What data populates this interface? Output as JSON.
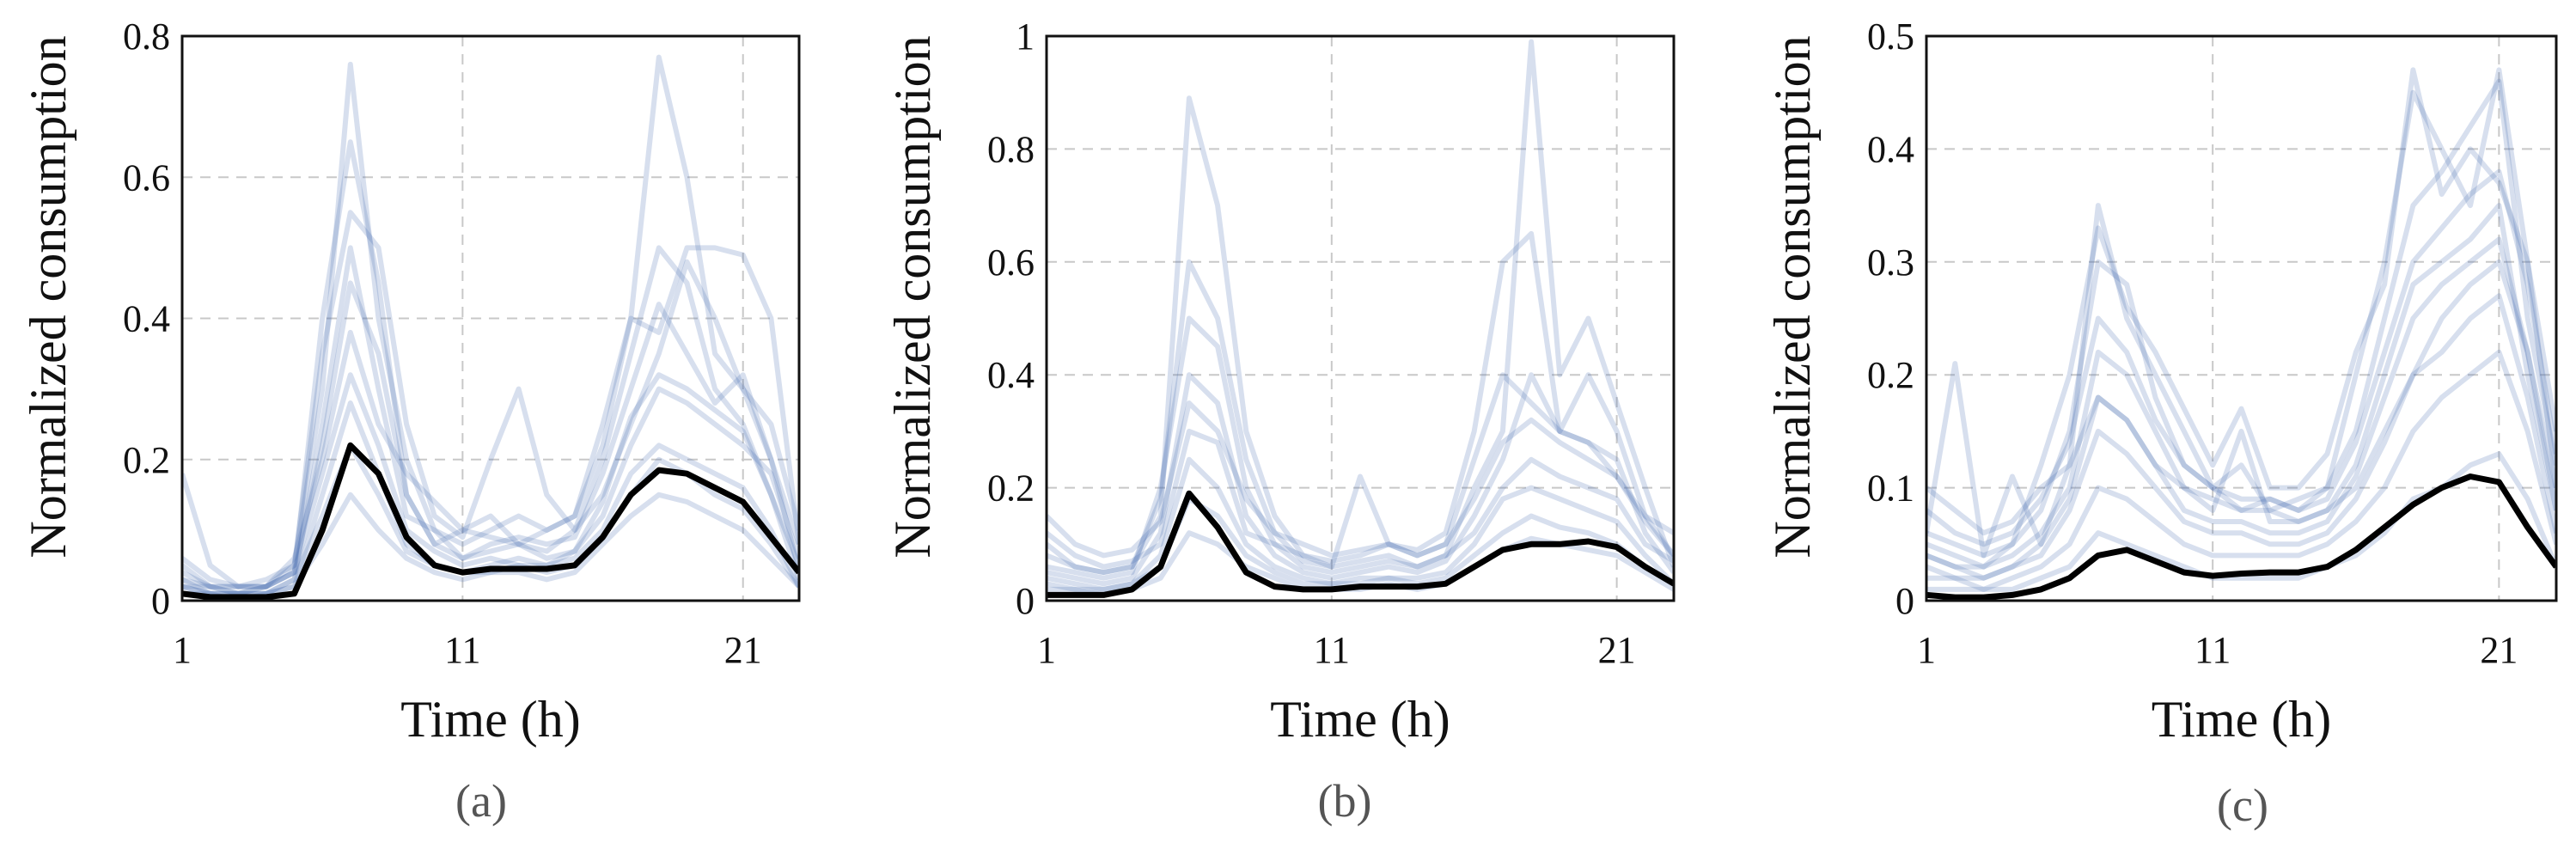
{
  "chart_data": [
    {
      "type": "line",
      "caption": "(a)",
      "xlabel": "Time (h)",
      "ylabel": "Normalized consumption",
      "xlim": [
        1,
        23
      ],
      "ylim": [
        0,
        0.8
      ],
      "xticks": [
        "1",
        "11",
        "21"
      ],
      "xtick_values": [
        1,
        11,
        21
      ],
      "yticks": [
        "0",
        "0.2",
        "0.4",
        "0.6",
        "0.8"
      ],
      "ytick_values": [
        0,
        0.2,
        0.4,
        0.6,
        0.8
      ],
      "grid": true,
      "x": [
        1,
        2,
        3,
        4,
        5,
        6,
        7,
        8,
        9,
        10,
        11,
        12,
        13,
        14,
        15,
        16,
        17,
        18,
        19,
        20,
        21,
        22,
        23
      ],
      "series_color": "#4a6db2",
      "mean_color": "#000000",
      "series": [
        {
          "values": [
            0.05,
            0.02,
            0.02,
            0.03,
            0.05,
            0.3,
            0.76,
            0.4,
            0.2,
            0.1,
            0.08,
            0.1,
            0.12,
            0.1,
            0.12,
            0.25,
            0.4,
            0.77,
            0.6,
            0.35,
            0.3,
            0.2,
            0.08
          ]
        },
        {
          "values": [
            0.03,
            0.02,
            0.01,
            0.02,
            0.04,
            0.4,
            0.65,
            0.45,
            0.15,
            0.08,
            0.1,
            0.12,
            0.08,
            0.07,
            0.1,
            0.2,
            0.35,
            0.5,
            0.45,
            0.3,
            0.25,
            0.15,
            0.05
          ]
        },
        {
          "values": [
            0.02,
            0.01,
            0.01,
            0.01,
            0.03,
            0.25,
            0.5,
            0.3,
            0.12,
            0.1,
            0.06,
            0.08,
            0.09,
            0.08,
            0.09,
            0.18,
            0.3,
            0.42,
            0.35,
            0.28,
            0.32,
            0.2,
            0.04
          ]
        },
        {
          "values": [
            0.06,
            0.03,
            0.02,
            0.02,
            0.06,
            0.2,
            0.38,
            0.25,
            0.18,
            0.14,
            0.1,
            0.09,
            0.08,
            0.06,
            0.07,
            0.12,
            0.22,
            0.3,
            0.28,
            0.25,
            0.22,
            0.18,
            0.06
          ]
        },
        {
          "values": [
            0.01,
            0.01,
            0.0,
            0.01,
            0.02,
            0.15,
            0.28,
            0.18,
            0.08,
            0.05,
            0.04,
            0.05,
            0.06,
            0.05,
            0.06,
            0.1,
            0.18,
            0.22,
            0.2,
            0.18,
            0.16,
            0.1,
            0.02
          ]
        },
        {
          "values": [
            0.04,
            0.02,
            0.02,
            0.02,
            0.05,
            0.35,
            0.55,
            0.5,
            0.25,
            0.12,
            0.09,
            0.2,
            0.3,
            0.15,
            0.1,
            0.15,
            0.25,
            0.35,
            0.48,
            0.4,
            0.3,
            0.25,
            0.1
          ]
        },
        {
          "values": [
            0.02,
            0.02,
            0.01,
            0.02,
            0.04,
            0.18,
            0.32,
            0.22,
            0.1,
            0.07,
            0.05,
            0.06,
            0.05,
            0.05,
            0.07,
            0.14,
            0.26,
            0.32,
            0.3,
            0.27,
            0.24,
            0.15,
            0.03
          ]
        },
        {
          "values": [
            0.03,
            0.01,
            0.01,
            0.01,
            0.03,
            0.12,
            0.22,
            0.15,
            0.07,
            0.05,
            0.04,
            0.04,
            0.05,
            0.04,
            0.05,
            0.09,
            0.15,
            0.2,
            0.18,
            0.15,
            0.13,
            0.08,
            0.02
          ]
        },
        {
          "values": [
            0.18,
            0.05,
            0.02,
            0.02,
            0.04,
            0.22,
            0.45,
            0.35,
            0.15,
            0.08,
            0.06,
            0.07,
            0.08,
            0.1,
            0.12,
            0.22,
            0.4,
            0.38,
            0.5,
            0.5,
            0.49,
            0.4,
            0.08
          ]
        },
        {
          "values": [
            0.02,
            0.01,
            0.01,
            0.01,
            0.02,
            0.08,
            0.15,
            0.1,
            0.06,
            0.04,
            0.03,
            0.04,
            0.04,
            0.03,
            0.04,
            0.08,
            0.12,
            0.15,
            0.14,
            0.12,
            0.1,
            0.06,
            0.02
          ]
        }
      ],
      "mean": [
        0.01,
        0.005,
        0.005,
        0.005,
        0.01,
        0.1,
        0.22,
        0.18,
        0.09,
        0.05,
        0.04,
        0.045,
        0.045,
        0.045,
        0.05,
        0.09,
        0.15,
        0.185,
        0.18,
        0.16,
        0.14,
        0.09,
        0.04
      ]
    },
    {
      "type": "line",
      "caption": "(b)",
      "xlabel": "Time (h)",
      "ylabel": "Normalized consumption",
      "xlim": [
        1,
        23
      ],
      "ylim": [
        0,
        1
      ],
      "xticks": [
        "1",
        "11",
        "21"
      ],
      "xtick_values": [
        1,
        11,
        21
      ],
      "yticks": [
        "0",
        "0.2",
        "0.4",
        "0.6",
        "0.8",
        "1"
      ],
      "ytick_values": [
        0,
        0.2,
        0.4,
        0.6,
        0.8,
        1
      ],
      "grid": true,
      "x": [
        1,
        2,
        3,
        4,
        5,
        6,
        7,
        8,
        9,
        10,
        11,
        12,
        13,
        14,
        15,
        16,
        17,
        18,
        19,
        20,
        21,
        22,
        23
      ],
      "series_color": "#4a6db2",
      "mean_color": "#000000",
      "series": [
        {
          "values": [
            0.1,
            0.06,
            0.05,
            0.06,
            0.15,
            0.89,
            0.7,
            0.3,
            0.15,
            0.08,
            0.07,
            0.08,
            0.1,
            0.09,
            0.12,
            0.3,
            0.6,
            0.65,
            0.3,
            0.4,
            0.3,
            0.15,
            0.08
          ]
        },
        {
          "values": [
            0.06,
            0.05,
            0.04,
            0.05,
            0.2,
            0.5,
            0.45,
            0.2,
            0.1,
            0.06,
            0.05,
            0.06,
            0.07,
            0.06,
            0.08,
            0.2,
            0.3,
            0.99,
            0.4,
            0.5,
            0.35,
            0.2,
            0.06
          ]
        },
        {
          "values": [
            0.05,
            0.04,
            0.03,
            0.04,
            0.12,
            0.4,
            0.35,
            0.15,
            0.08,
            0.05,
            0.04,
            0.05,
            0.06,
            0.05,
            0.07,
            0.15,
            0.25,
            0.4,
            0.3,
            0.28,
            0.25,
            0.12,
            0.05
          ]
        },
        {
          "values": [
            0.12,
            0.08,
            0.06,
            0.07,
            0.1,
            0.3,
            0.28,
            0.12,
            0.1,
            0.08,
            0.06,
            0.07,
            0.08,
            0.06,
            0.08,
            0.12,
            0.2,
            0.25,
            0.22,
            0.2,
            0.18,
            0.1,
            0.07
          ]
        },
        {
          "values": [
            0.03,
            0.02,
            0.02,
            0.03,
            0.08,
            0.25,
            0.2,
            0.1,
            0.06,
            0.04,
            0.03,
            0.04,
            0.04,
            0.04,
            0.05,
            0.1,
            0.18,
            0.2,
            0.18,
            0.16,
            0.14,
            0.08,
            0.03
          ]
        },
        {
          "values": [
            0.08,
            0.06,
            0.05,
            0.06,
            0.18,
            0.6,
            0.5,
            0.25,
            0.12,
            0.07,
            0.06,
            0.22,
            0.1,
            0.08,
            0.1,
            0.25,
            0.4,
            0.35,
            0.3,
            0.28,
            0.22,
            0.14,
            0.08
          ]
        },
        {
          "values": [
            0.04,
            0.03,
            0.02,
            0.03,
            0.06,
            0.18,
            0.15,
            0.08,
            0.05,
            0.03,
            0.03,
            0.03,
            0.04,
            0.03,
            0.04,
            0.08,
            0.12,
            0.15,
            0.13,
            0.12,
            0.1,
            0.06,
            0.03
          ]
        },
        {
          "values": [
            0.15,
            0.1,
            0.08,
            0.09,
            0.14,
            0.35,
            0.3,
            0.18,
            0.12,
            0.1,
            0.08,
            0.09,
            0.1,
            0.08,
            0.1,
            0.18,
            0.28,
            0.32,
            0.28,
            0.25,
            0.22,
            0.15,
            0.12
          ]
        },
        {
          "values": [
            0.02,
            0.02,
            0.01,
            0.02,
            0.04,
            0.12,
            0.1,
            0.06,
            0.04,
            0.02,
            0.02,
            0.02,
            0.03,
            0.02,
            0.03,
            0.06,
            0.09,
            0.11,
            0.1,
            0.09,
            0.08,
            0.05,
            0.02
          ]
        }
      ],
      "mean": [
        0.01,
        0.01,
        0.01,
        0.02,
        0.06,
        0.19,
        0.13,
        0.05,
        0.025,
        0.02,
        0.02,
        0.025,
        0.025,
        0.025,
        0.03,
        0.06,
        0.09,
        0.1,
        0.1,
        0.105,
        0.095,
        0.06,
        0.03
      ]
    },
    {
      "type": "line",
      "caption": "(c)",
      "xlabel": "Time (h)",
      "ylabel": "Normalized consumption",
      "xlim": [
        1,
        23
      ],
      "ylim": [
        0,
        0.5
      ],
      "xticks": [
        "1",
        "11",
        "21"
      ],
      "xtick_values": [
        1,
        11,
        21
      ],
      "yticks": [
        "0",
        "0.1",
        "0.2",
        "0.3",
        "0.4",
        "0.5"
      ],
      "ytick_values": [
        0,
        0.1,
        0.2,
        0.3,
        0.4,
        0.5
      ],
      "grid": true,
      "x": [
        1,
        2,
        3,
        4,
        5,
        6,
        7,
        8,
        9,
        10,
        11,
        12,
        13,
        14,
        15,
        16,
        17,
        18,
        19,
        20,
        21,
        22,
        23
      ],
      "series_color": "#4a6db2",
      "mean_color": "#000000",
      "series": [
        {
          "values": [
            0.06,
            0.21,
            0.04,
            0.11,
            0.05,
            0.12,
            0.35,
            0.25,
            0.2,
            0.15,
            0.1,
            0.12,
            0.08,
            0.09,
            0.1,
            0.2,
            0.3,
            0.45,
            0.4,
            0.35,
            0.47,
            0.3,
            0.15
          ]
        },
        {
          "values": [
            0.05,
            0.04,
            0.03,
            0.05,
            0.08,
            0.15,
            0.3,
            0.28,
            0.18,
            0.12,
            0.1,
            0.08,
            0.09,
            0.08,
            0.1,
            0.15,
            0.25,
            0.35,
            0.38,
            0.42,
            0.46,
            0.25,
            0.12
          ]
        },
        {
          "values": [
            0.04,
            0.03,
            0.03,
            0.04,
            0.06,
            0.1,
            0.22,
            0.2,
            0.15,
            0.1,
            0.08,
            0.15,
            0.07,
            0.07,
            0.08,
            0.12,
            0.2,
            0.28,
            0.3,
            0.32,
            0.35,
            0.2,
            0.08
          ]
        },
        {
          "values": [
            0.1,
            0.08,
            0.06,
            0.07,
            0.1,
            0.12,
            0.18,
            0.16,
            0.12,
            0.1,
            0.09,
            0.08,
            0.08,
            0.07,
            0.08,
            0.1,
            0.15,
            0.2,
            0.25,
            0.28,
            0.3,
            0.22,
            0.1
          ]
        },
        {
          "values": [
            0.02,
            0.02,
            0.01,
            0.02,
            0.03,
            0.05,
            0.1,
            0.09,
            0.07,
            0.05,
            0.04,
            0.04,
            0.04,
            0.04,
            0.05,
            0.07,
            0.1,
            0.15,
            0.18,
            0.2,
            0.22,
            0.15,
            0.05
          ]
        },
        {
          "values": [
            0.06,
            0.05,
            0.04,
            0.05,
            0.12,
            0.2,
            0.33,
            0.26,
            0.22,
            0.17,
            0.12,
            0.17,
            0.1,
            0.1,
            0.13,
            0.22,
            0.28,
            0.47,
            0.36,
            0.4,
            0.37,
            0.3,
            0.1
          ]
        },
        {
          "values": [
            0.03,
            0.02,
            0.02,
            0.03,
            0.04,
            0.08,
            0.15,
            0.13,
            0.1,
            0.07,
            0.06,
            0.06,
            0.05,
            0.05,
            0.06,
            0.09,
            0.14,
            0.2,
            0.22,
            0.25,
            0.27,
            0.18,
            0.06
          ]
        },
        {
          "values": [
            0.01,
            0.01,
            0.01,
            0.01,
            0.02,
            0.03,
            0.06,
            0.05,
            0.04,
            0.03,
            0.02,
            0.02,
            0.02,
            0.02,
            0.03,
            0.04,
            0.06,
            0.09,
            0.1,
            0.12,
            0.13,
            0.09,
            0.03
          ]
        },
        {
          "values": [
            0.08,
            0.06,
            0.05,
            0.06,
            0.09,
            0.14,
            0.25,
            0.22,
            0.16,
            0.12,
            0.1,
            0.09,
            0.09,
            0.08,
            0.09,
            0.14,
            0.22,
            0.3,
            0.33,
            0.36,
            0.38,
            0.28,
            0.13
          ]
        },
        {
          "values": [
            0.04,
            0.03,
            0.02,
            0.03,
            0.05,
            0.09,
            0.18,
            0.16,
            0.12,
            0.08,
            0.07,
            0.07,
            0.06,
            0.06,
            0.07,
            0.11,
            0.18,
            0.25,
            0.28,
            0.3,
            0.32,
            0.22,
            0.08
          ]
        }
      ],
      "mean": [
        0.005,
        0.003,
        0.003,
        0.005,
        0.01,
        0.02,
        0.04,
        0.045,
        0.035,
        0.025,
        0.022,
        0.024,
        0.025,
        0.025,
        0.03,
        0.045,
        0.065,
        0.085,
        0.1,
        0.11,
        0.105,
        0.065,
        0.03
      ]
    }
  ]
}
